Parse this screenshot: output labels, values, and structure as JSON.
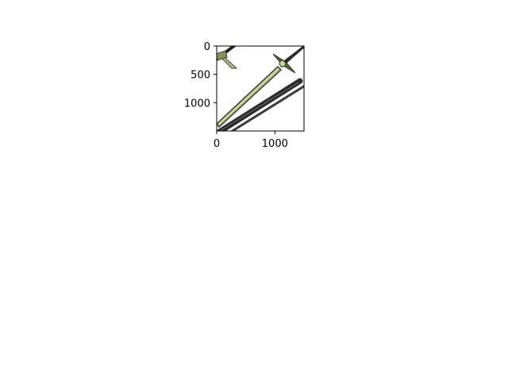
{
  "chart_data": {
    "type": "image",
    "title": "",
    "xlabel": "",
    "ylabel": "",
    "xlim": [
      0,
      1500
    ],
    "ylim": [
      1500,
      0
    ],
    "y_inverted": true,
    "grid": false,
    "xticks": [
      0,
      1000
    ],
    "yticks": [
      0,
      500,
      1000
    ],
    "x_tick_labels": [
      "0",
      "1000"
    ],
    "y_tick_labels": [
      "0",
      "500",
      "1000"
    ],
    "image_content": "sword-and-staff-icon",
    "colors": {
      "blade_fill": "#b7bf8a",
      "blade_outline": "#3c3f2c",
      "staff_dark": "#262626",
      "guard": "#4a5a2a"
    }
  }
}
